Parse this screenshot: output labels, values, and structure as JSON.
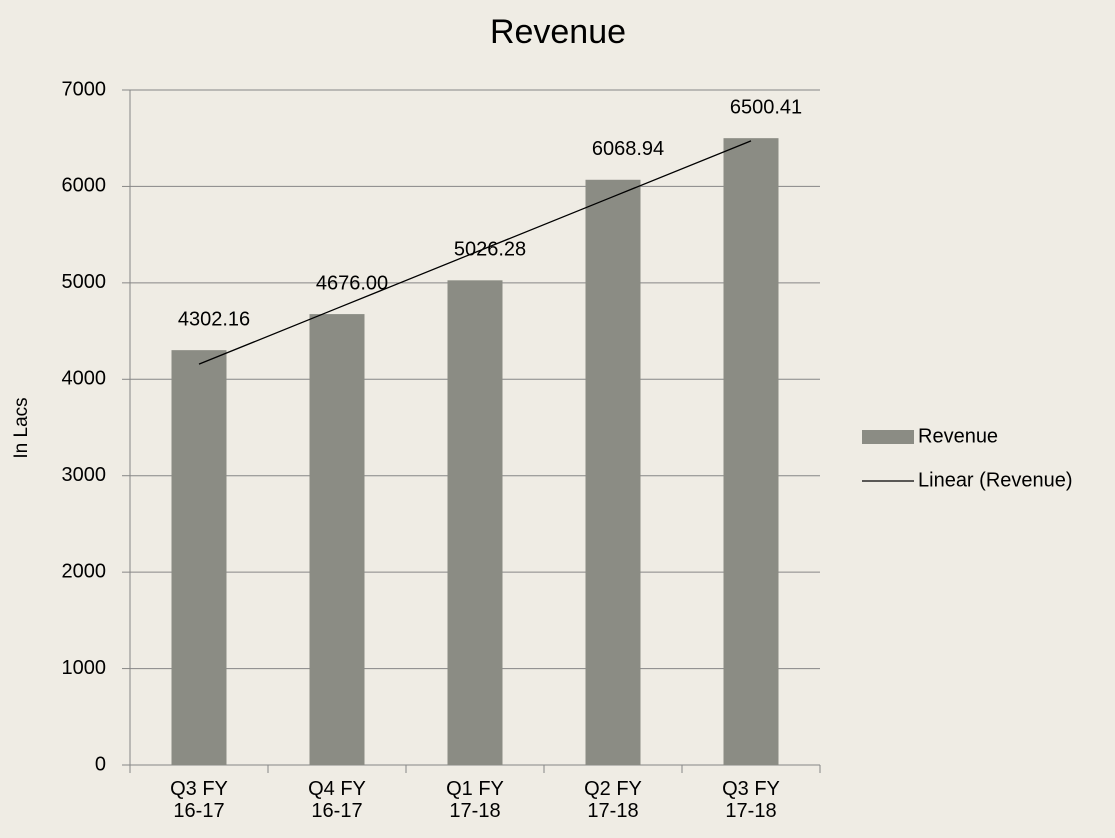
{
  "chart_data": {
    "type": "bar",
    "title": "Revenue",
    "y_label": "In Lacs",
    "categories": [
      "Q3 FY 16-17",
      "Q4 FY 16-17",
      "Q1 FY 17-18",
      "Q2 FY 17-18",
      "Q3 FY 17-18"
    ],
    "series": [
      {
        "name": "Revenue",
        "color": "#8b8c84",
        "values": [
          4302.16,
          4676,
          5026.28,
          6068.94,
          6500.41
        ],
        "value_labels": [
          "4302.16",
          "4676.00",
          "5026.28",
          "6068.94",
          "6500.41"
        ]
      },
      {
        "name": "Linear (Revenue)",
        "type": "line",
        "color": "#000000",
        "values": [
          4156.87,
          4735.81,
          5314.76,
          5893.7,
          6472.64
        ]
      }
    ],
    "ylim": [
      0,
      7000
    ],
    "yticks": [
      0,
      1000,
      2000,
      3000,
      4000,
      5000,
      6000,
      7000
    ],
    "grid": true,
    "legend": "right"
  }
}
